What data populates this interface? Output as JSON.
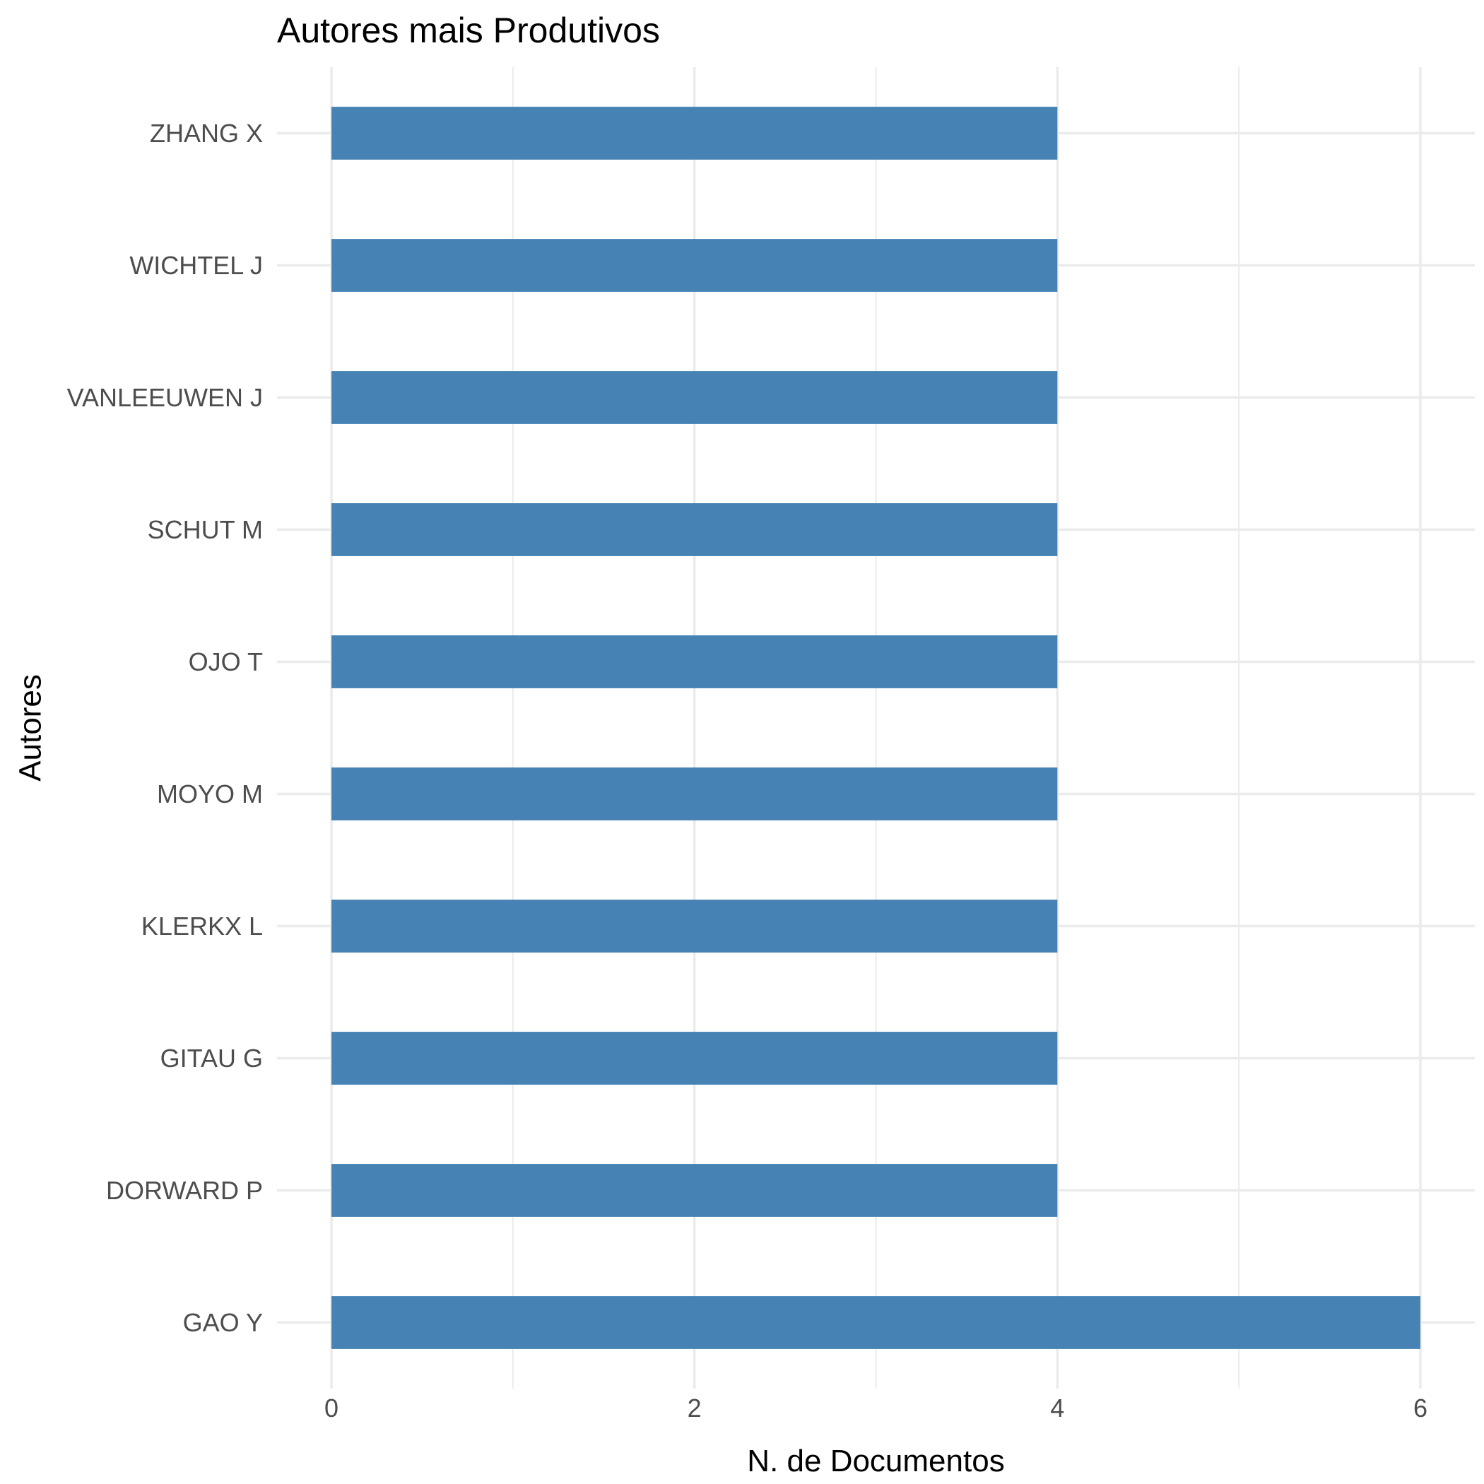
{
  "chart_data": {
    "type": "bar",
    "orientation": "horizontal",
    "title": "Autores mais Produtivos",
    "xlabel": "N. de Documentos",
    "ylabel": "Autores",
    "categories": [
      "GAO Y",
      "DORWARD P",
      "GITAU G",
      "KLERKX L",
      "MOYO M",
      "OJO T",
      "SCHUT M",
      "VANLEEUWEN J",
      "WICHTEL J",
      "ZHANG X"
    ],
    "values": [
      6,
      4,
      4,
      4,
      4,
      4,
      4,
      4,
      4,
      4
    ],
    "xlim": [
      -0.3,
      6.3
    ],
    "x_ticks": [
      0,
      2,
      4,
      6
    ],
    "grid": true,
    "legend": false,
    "colors": {
      "bar": "#4682b4",
      "grid": "#ebebeb"
    }
  }
}
